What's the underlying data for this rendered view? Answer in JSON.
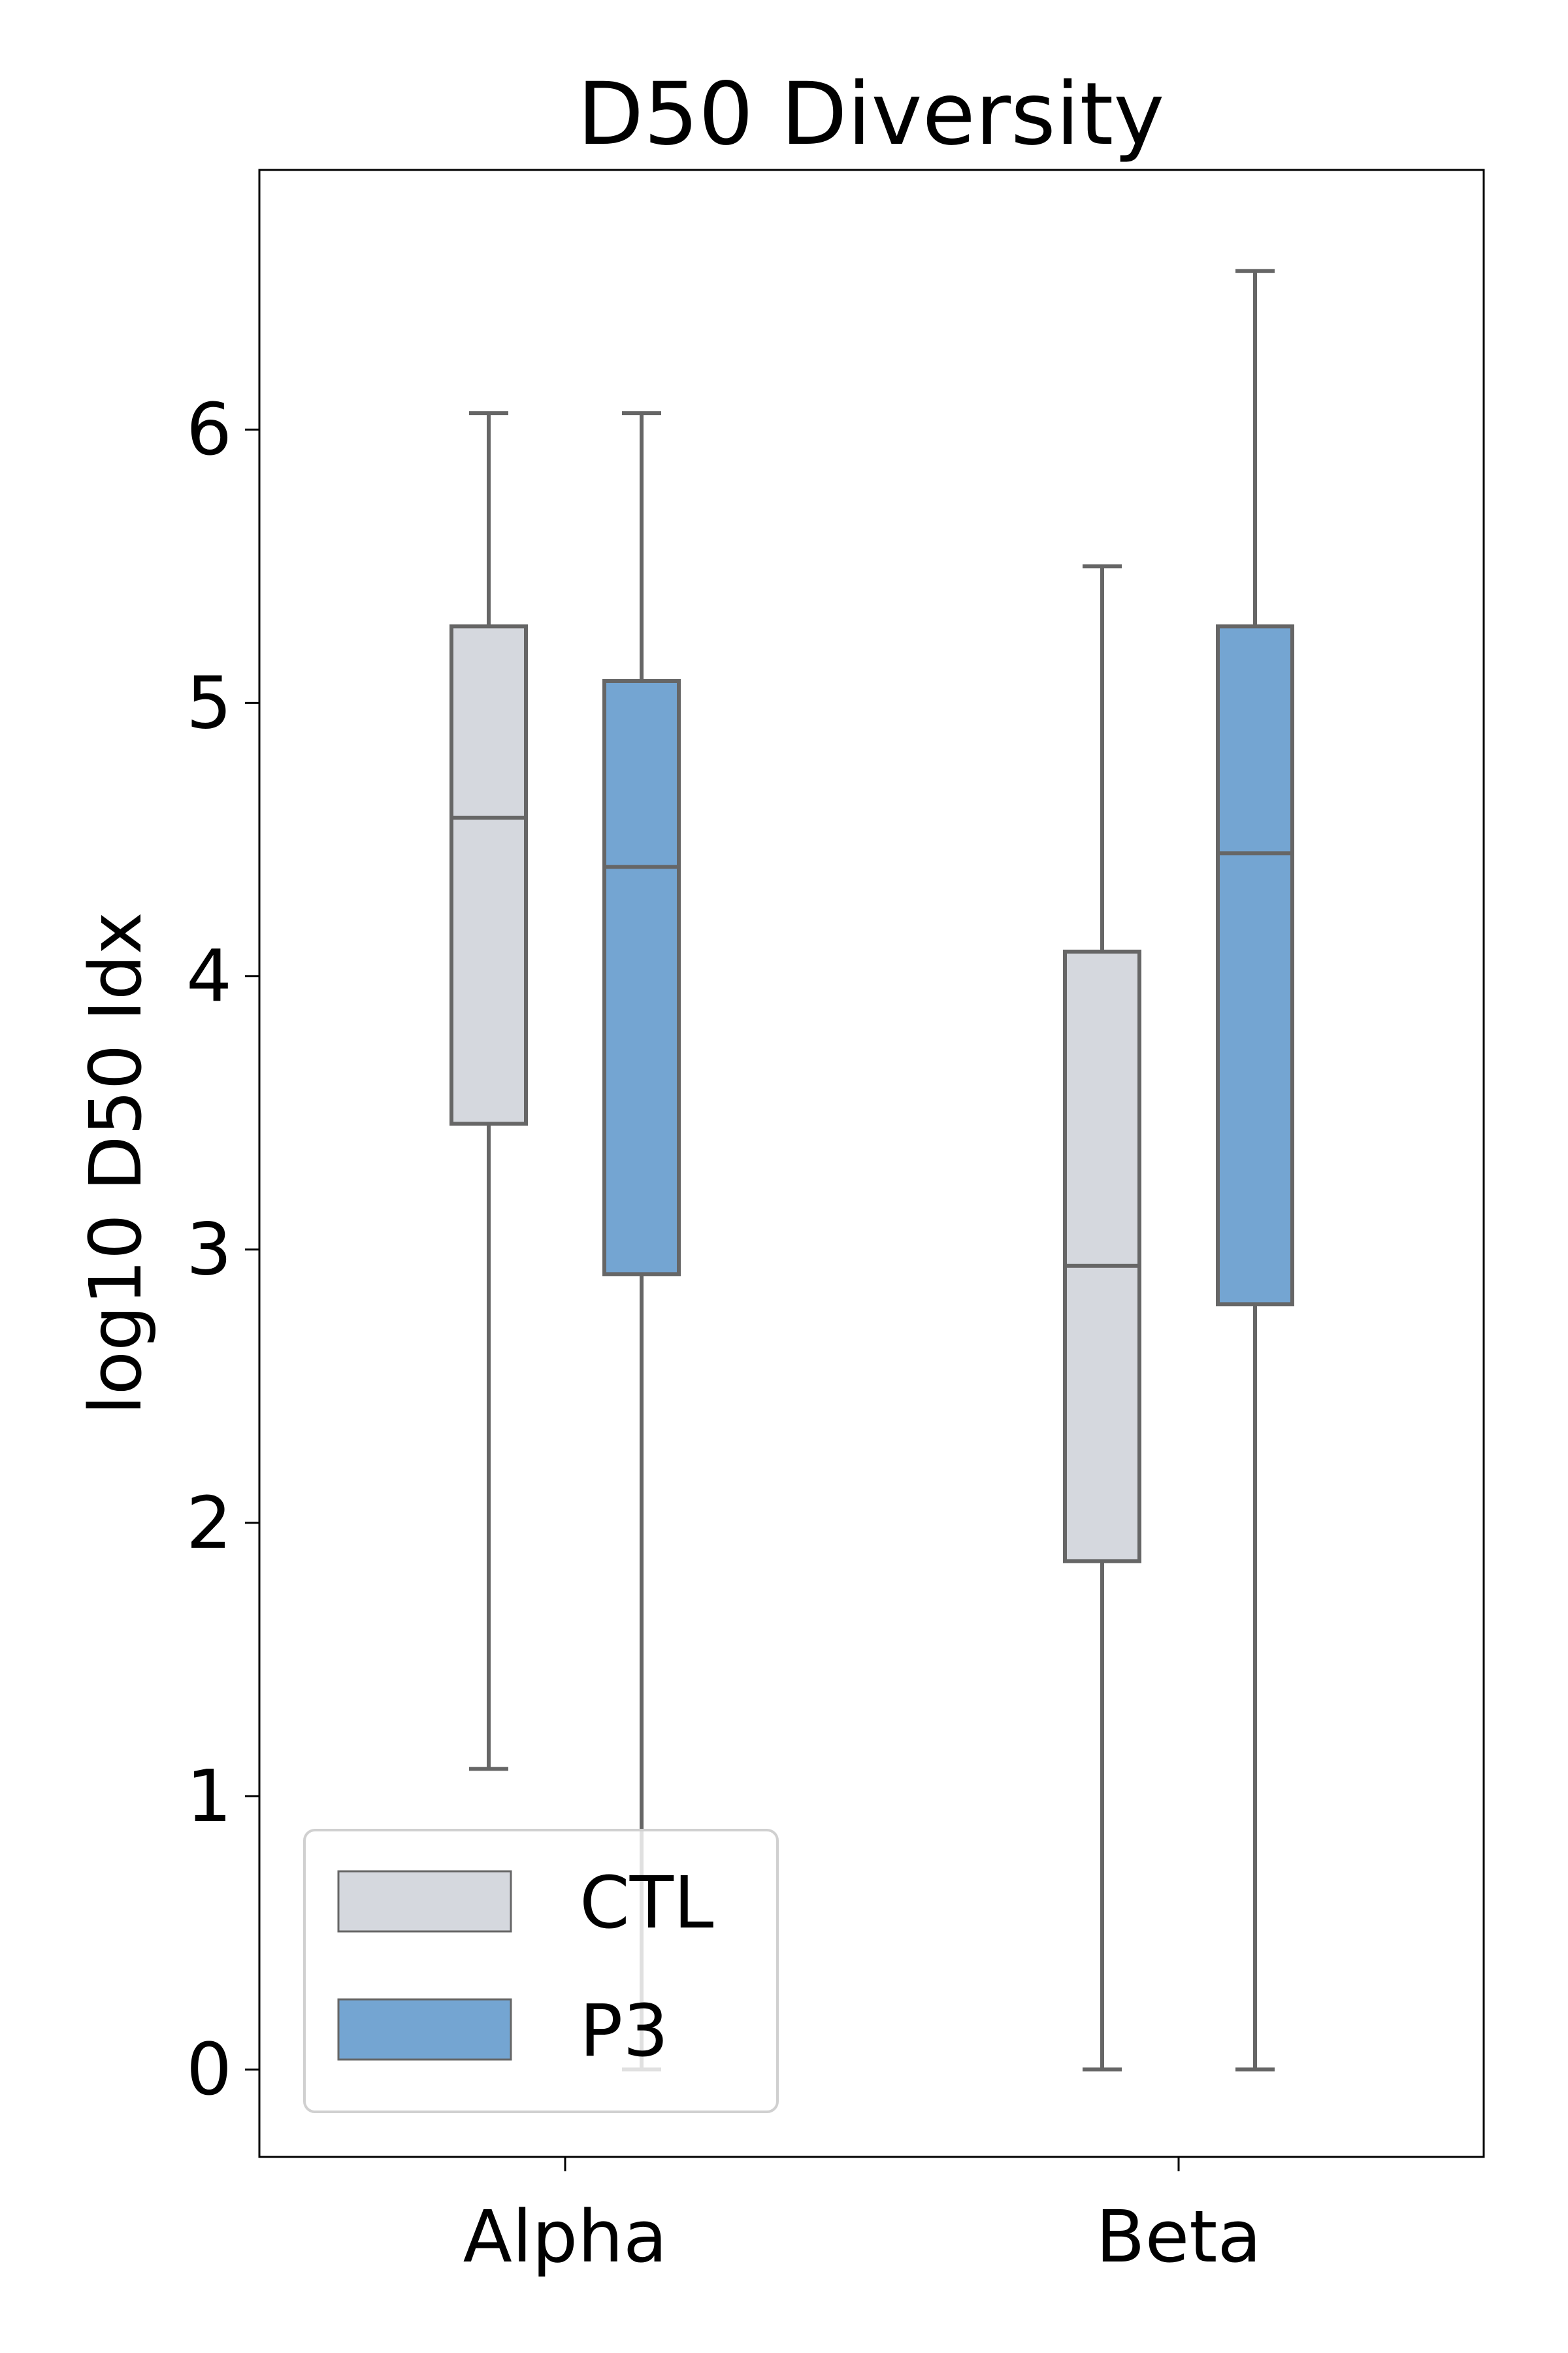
{
  "chart_data": {
    "type": "box",
    "title": "D50 Diversity",
    "xlabel": "",
    "ylabel": "log10 D50 Idx",
    "categories": [
      "Alpha",
      "Beta"
    ],
    "yticks": [
      "0",
      "1",
      "2",
      "3",
      "4",
      "5",
      "6"
    ],
    "ylim": [
      -0.32,
      6.95
    ],
    "grid": false,
    "legend_position": "lower-left",
    "series": [
      {
        "name": "CTL",
        "color": "#d5d8de",
        "boxes": [
          {
            "whisker_low": 1.1,
            "q1": 3.46,
            "median": 4.58,
            "q3": 5.28,
            "whisker_high": 6.06
          },
          {
            "whisker_low": 0.0,
            "q1": 1.86,
            "median": 2.94,
            "q3": 4.09,
            "whisker_high": 5.5
          }
        ]
      },
      {
        "name": "P3",
        "color": "#74a5d2",
        "boxes": [
          {
            "whisker_low": 0.0,
            "q1": 2.91,
            "median": 4.4,
            "q3": 5.08,
            "whisker_high": 6.06
          },
          {
            "whisker_low": 0.0,
            "q1": 2.8,
            "median": 4.45,
            "q3": 5.28,
            "whisker_high": 6.58
          }
        ]
      }
    ],
    "line_color": "#666666"
  }
}
